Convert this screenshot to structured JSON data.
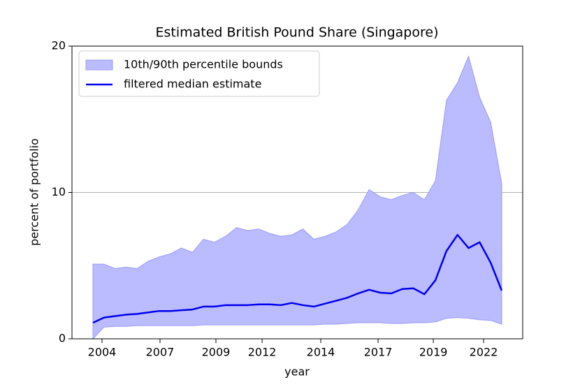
{
  "chart_data": {
    "type": "band-line",
    "title": "Estimated British Pound Share (Singapore)",
    "xlabel": "year",
    "ylabel": "percent of portfolio",
    "x": [
      0,
      1,
      2,
      3,
      4,
      5,
      6,
      7,
      8,
      9,
      10,
      11,
      12,
      13,
      14,
      15,
      16,
      17,
      18,
      19,
      20,
      21,
      22,
      23,
      24,
      25,
      26,
      27,
      28,
      29,
      30,
      31,
      32,
      33,
      34,
      35,
      36,
      37
    ],
    "band": {
      "name": "10th/90th percentile bounds",
      "color": "#bbbbff",
      "edge": "#9999ff",
      "upper": [
        5.1,
        5.1,
        4.8,
        4.9,
        4.8,
        5.3,
        5.6,
        5.8,
        6.2,
        5.9,
        6.8,
        6.6,
        7.0,
        7.6,
        7.4,
        7.5,
        7.2,
        7.0,
        7.1,
        7.5,
        6.8,
        7.0,
        7.3,
        7.8,
        8.8,
        10.2,
        9.7,
        9.5,
        9.8,
        10.0,
        9.5,
        10.8,
        16.3,
        17.5,
        19.3,
        16.5,
        14.8,
        10.6
      ],
      "lower": [
        0.0,
        0.8,
        0.85,
        0.85,
        0.9,
        0.9,
        0.9,
        0.9,
        0.9,
        0.9,
        0.95,
        0.95,
        0.95,
        0.95,
        0.95,
        0.95,
        0.95,
        0.95,
        0.95,
        0.95,
        0.95,
        1.0,
        1.0,
        1.05,
        1.1,
        1.1,
        1.1,
        1.05,
        1.05,
        1.1,
        1.1,
        1.15,
        1.4,
        1.45,
        1.4,
        1.3,
        1.25,
        1.0
      ]
    },
    "series": [
      {
        "name": "filtered median estimate",
        "color": "#0000ee",
        "values": [
          1.1,
          1.45,
          1.55,
          1.65,
          1.7,
          1.8,
          1.9,
          1.9,
          1.95,
          2.0,
          2.2,
          2.2,
          2.3,
          2.3,
          2.3,
          2.35,
          2.35,
          2.3,
          2.45,
          2.3,
          2.2,
          2.4,
          2.6,
          2.8,
          3.1,
          3.35,
          3.15,
          3.1,
          3.4,
          3.45,
          3.05,
          4.0,
          6.0,
          7.1,
          6.2,
          6.6,
          5.2,
          3.3
        ]
      }
    ],
    "xlim": [
      -1.9,
      38.9
    ],
    "xticks": [
      {
        "value": 0.82,
        "label": "2004"
      },
      {
        "value": 6.07,
        "label": "2007"
      },
      {
        "value": 11.13,
        "label": "2009"
      },
      {
        "value": 15.31,
        "label": "2012"
      },
      {
        "value": 20.62,
        "label": "2014"
      },
      {
        "value": 25.81,
        "label": "2017"
      },
      {
        "value": 30.81,
        "label": "2019"
      },
      {
        "value": 35.36,
        "label": "2022"
      }
    ],
    "ylim": [
      0,
      20
    ],
    "yticks": [
      0,
      10,
      20
    ],
    "grid": true,
    "legend": "upper left"
  }
}
